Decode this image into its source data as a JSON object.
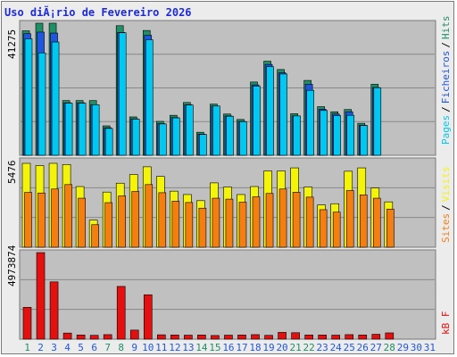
{
  "title": "Uso diÃ¡rio de Fevereiro 2026",
  "colors": {
    "hits": "#1f8f66",
    "files": "#1f56e0",
    "pages": "#00c8f0",
    "visits": "#f4f40a",
    "sites": "#f47f10",
    "kbytes": "#e41010",
    "plot_bg": "#c0c0c0",
    "weekend_label": "#1f8f66",
    "weekday_label": "#1f56e0"
  },
  "legend": {
    "hits": "Hits",
    "slash1": "/",
    "files": "Ficheiros",
    "slash2": "/",
    "pages": "Pages",
    "sites": "Sites",
    "slash3": "/",
    "visits": "Visits",
    "kbf": "kB F"
  },
  "chart_data": [
    {
      "type": "bar",
      "name": "hits-files-pages",
      "y_max_label": "41275",
      "ylim": [
        0,
        41275
      ],
      "x": [
        1,
        2,
        3,
        4,
        5,
        6,
        7,
        8,
        9,
        10,
        11,
        12,
        13,
        14,
        15,
        16,
        17,
        18,
        19,
        20,
        21,
        22,
        23,
        24,
        25,
        26,
        27,
        28,
        29,
        30,
        31
      ],
      "series": [
        {
          "name": "Hits",
          "values": [
            38900,
            41275,
            41275,
            17100,
            17100,
            17100,
            9200,
            40500,
            12000,
            39000,
            10600,
            12500,
            16500,
            7200,
            16000,
            12900,
            11200,
            22900,
            29400,
            26800,
            13000,
            23400,
            15200,
            13600,
            14300,
            10000,
            22200,
            0,
            0,
            0,
            0
          ]
        },
        {
          "name": "Ficheiros",
          "values": [
            38000,
            38500,
            38200,
            16400,
            16400,
            15800,
            8600,
            38400,
            11400,
            37500,
            9900,
            11800,
            15800,
            6600,
            15400,
            12300,
            10600,
            22000,
            28400,
            25800,
            12300,
            22200,
            14400,
            12900,
            13600,
            9400,
            21200,
            0,
            0,
            0,
            0
          ]
        },
        {
          "name": "Pages",
          "values": [
            36400,
            32000,
            35400,
            16300,
            16300,
            15800,
            8400,
            38300,
            11300,
            36100,
            9800,
            11700,
            15700,
            6500,
            15400,
            12200,
            10500,
            21600,
            27700,
            25400,
            12300,
            20300,
            14000,
            12400,
            12500,
            9300,
            21100,
            0,
            0,
            0,
            0
          ]
        }
      ]
    },
    {
      "type": "bar",
      "name": "visits-sites",
      "y_max_label": "5476",
      "ylim": [
        0,
        5476
      ],
      "x": [
        1,
        2,
        3,
        4,
        5,
        6,
        7,
        8,
        9,
        10,
        11,
        12,
        13,
        14,
        15,
        16,
        17,
        18,
        19,
        20,
        21,
        22,
        23,
        24,
        25,
        26,
        27,
        28,
        29,
        30,
        31
      ],
      "series": [
        {
          "name": "Visits",
          "values": [
            5476,
            5330,
            5476,
            5400,
            3960,
            1770,
            3600,
            4180,
            4750,
            5250,
            4620,
            3660,
            3440,
            3040,
            4200,
            3930,
            3440,
            3960,
            4980,
            4980,
            5180,
            3930,
            2760,
            2840,
            4960,
            5180,
            3870,
            2960,
            0,
            0,
            0
          ]
        },
        {
          "name": "Sites",
          "values": [
            3580,
            3540,
            3800,
            4090,
            3200,
            1470,
            2910,
            3350,
            3640,
            4090,
            3560,
            3010,
            2920,
            2550,
            3200,
            3140,
            2940,
            3290,
            3510,
            3800,
            3590,
            3270,
            2450,
            2290,
            3700,
            3420,
            3200,
            2490,
            0,
            0,
            0
          ]
        }
      ]
    },
    {
      "type": "bar",
      "name": "kbytes",
      "y_max_label": "4973874",
      "ylim": [
        0,
        4973874
      ],
      "x": [
        1,
        2,
        3,
        4,
        5,
        6,
        7,
        8,
        9,
        10,
        11,
        12,
        13,
        14,
        15,
        16,
        17,
        18,
        19,
        20,
        21,
        22,
        23,
        24,
        25,
        26,
        27,
        28,
        29,
        30,
        31
      ],
      "x_labels": [
        "1",
        "2",
        "3",
        "4",
        "5",
        "6",
        "7",
        "8",
        "9",
        "10",
        "11",
        "12",
        "13",
        "14",
        "15",
        "16",
        "17",
        "18",
        "19",
        "20",
        "21",
        "22",
        "23",
        "24",
        "25",
        "26",
        "27",
        "28",
        "29",
        "30",
        "31"
      ],
      "weekend_days": [
        1,
        7,
        8,
        14,
        15,
        21,
        22,
        28
      ],
      "series": [
        {
          "name": "kB F",
          "values": [
            1830000,
            4973874,
            3290000,
            350000,
            240000,
            220000,
            260000,
            3030000,
            520000,
            2550000,
            250000,
            240000,
            230000,
            240000,
            210000,
            230000,
            240000,
            260000,
            220000,
            390000,
            370000,
            240000,
            240000,
            230000,
            260000,
            240000,
            280000,
            360000,
            0,
            0,
            0
          ]
        }
      ]
    }
  ]
}
